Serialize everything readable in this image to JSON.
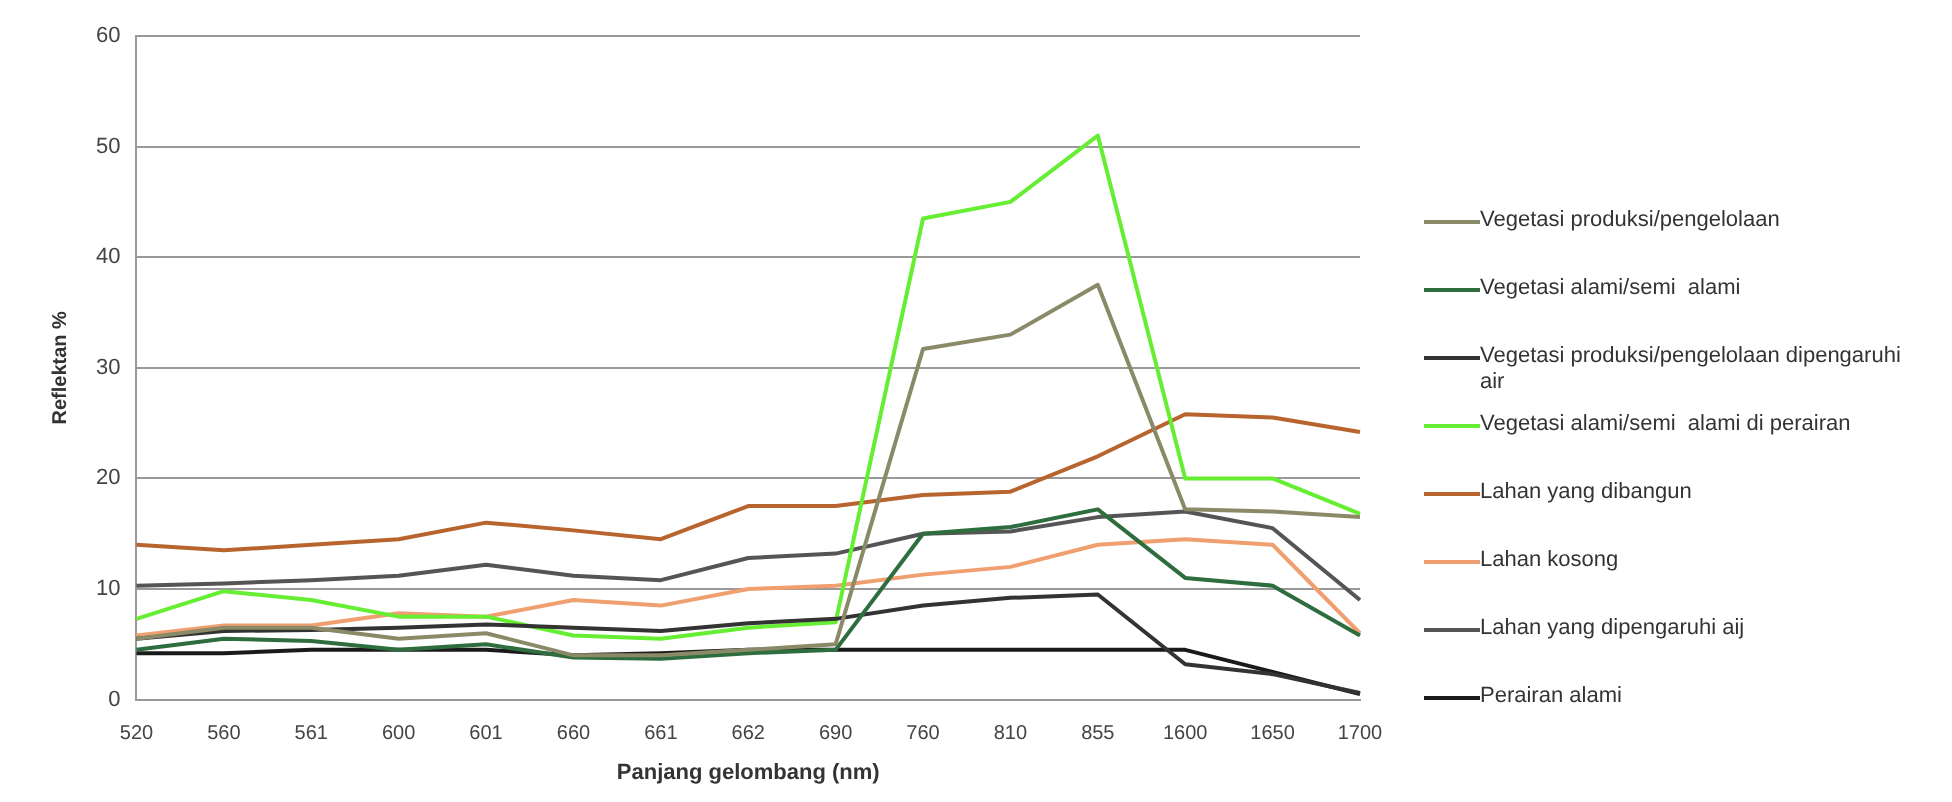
{
  "chart_data": {
    "type": "line",
    "xlabel": "Panjang gelombang (nm)",
    "ylabel": "Reflektan %",
    "categories": [
      "520",
      "560",
      "561",
      "600",
      "601",
      "660",
      "661",
      "662",
      "690",
      "760",
      "810",
      "855",
      "1600",
      "1650",
      "1700"
    ],
    "series": [
      {
        "name": "Vegetasi produksi/pengelolaan",
        "color": "#8a8a68",
        "values": [
          5.5,
          6.5,
          6.5,
          5.5,
          6,
          4,
          4,
          4.5,
          5,
          31.7,
          33,
          37.5,
          17.2,
          17,
          16.5
        ]
      },
      {
        "name": "Vegetasi alami/semi  alami",
        "color": "#2e6e3e",
        "values": [
          4.5,
          5.5,
          5.3,
          4.5,
          5,
          3.8,
          3.7,
          4.2,
          4.5,
          15,
          15.6,
          17.2,
          11,
          10.3,
          5.8
        ]
      },
      {
        "name": "Vegetasi produksi/pengelolaan dipengaruhi air",
        "color": "#333333",
        "values": [
          5.5,
          6.2,
          6.3,
          6.5,
          6.8,
          6.5,
          6.2,
          6.9,
          7.3,
          8.5,
          9.2,
          9.5,
          3.2,
          2.3,
          0.6
        ]
      },
      {
        "name": "Vegetasi alami/semi  alami di perairan",
        "color": "#66ee33",
        "values": [
          7.3,
          9.8,
          9,
          7.5,
          7.5,
          5.8,
          5.5,
          6.5,
          7,
          43.5,
          45,
          51,
          20,
          20,
          16.8
        ]
      },
      {
        "name": "Lahan yang dibangun",
        "color": "#b8642e",
        "values": [
          14,
          13.5,
          14,
          14.5,
          16,
          15.3,
          14.5,
          17.5,
          17.5,
          18.5,
          18.8,
          22,
          25.8,
          25.5,
          24.2
        ]
      },
      {
        "name": "Lahan kosong",
        "color": "#f0a070",
        "values": [
          5.8,
          6.7,
          6.7,
          7.8,
          7.5,
          9,
          8.5,
          10,
          10.3,
          11.3,
          12,
          14,
          14.5,
          14,
          6
        ]
      },
      {
        "name": "Lahan yang dipengaruhi aij",
        "color": "#555555",
        "values": [
          10.3,
          10.5,
          10.8,
          11.2,
          12.2,
          11.2,
          10.8,
          12.8,
          13.2,
          15,
          15.2,
          16.5,
          17,
          15.5,
          9
        ]
      },
      {
        "name": "Perairan alami",
        "color": "#1a1a1a",
        "values": [
          4.2,
          4.2,
          4.5,
          4.5,
          4.5,
          4,
          4.2,
          4.5,
          4.5,
          4.5,
          4.5,
          4.5,
          4.5,
          2.5,
          0.5
        ]
      }
    ],
    "ylim": [
      0,
      60
    ],
    "yticks": [
      0,
      10,
      20,
      30,
      40,
      50,
      60
    ],
    "grid": "y",
    "legend": "right",
    "marker": "none",
    "line_style": "solid"
  }
}
